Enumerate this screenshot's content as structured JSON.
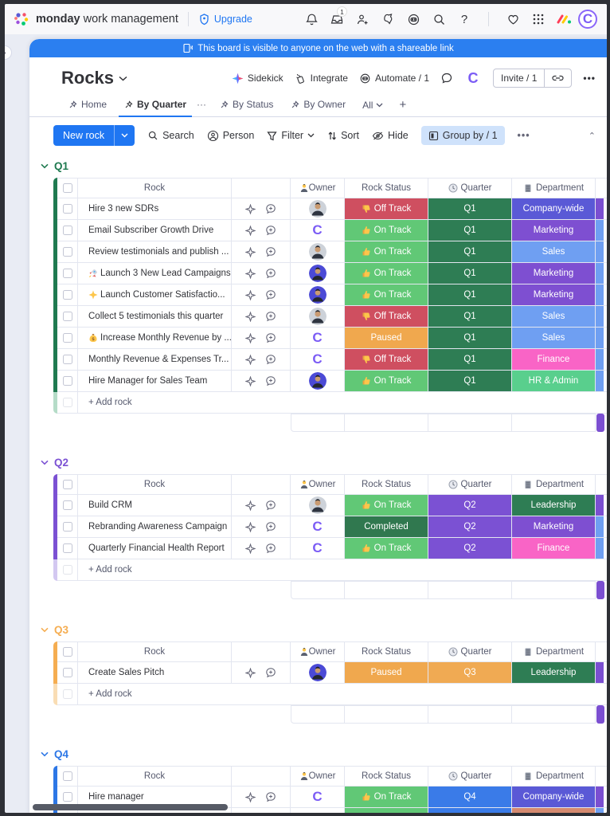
{
  "topbar": {
    "product_bold": "monday",
    "product_rest": "work management",
    "upgrade_label": "Upgrade",
    "inbox_badge": "1",
    "icons": [
      "notifications-bell-icon",
      "inbox-icon",
      "invite-members-icon",
      "updates-icon",
      "automations-robot-icon",
      "search-icon",
      "help-icon",
      "favorites-heart-icon",
      "apps-grid-icon",
      "monday-logo-icon",
      "account-avatar-c"
    ]
  },
  "banner": {
    "text": "This board is visible to anyone on the web with a shareable link",
    "icon": "shareable-link-doc-icon"
  },
  "board": {
    "title": "Rocks",
    "actions": {
      "sidekick": "Sidekick",
      "integrate": "Integrate",
      "automate": "Automate / 1",
      "invite": "Invite / 1"
    },
    "tabs": [
      {
        "label": "Home",
        "active": false
      },
      {
        "label": "By Quarter",
        "active": true
      },
      {
        "label": "By Status",
        "active": false
      },
      {
        "label": "By Owner",
        "active": false
      }
    ],
    "views_filter": "All",
    "add_view": "+"
  },
  "toolbar": {
    "new_item": "New rock",
    "search": "Search",
    "person": "Person",
    "filter": "Filter",
    "sort": "Sort",
    "hide": "Hide",
    "group_by": "Group by / 1",
    "more": "...",
    "collapse": "^"
  },
  "columns": {
    "rock": "Rock",
    "owner": "Owner",
    "status": "Rock Status",
    "quarter": "Quarter",
    "department": "Department"
  },
  "add_rock_label": "+ Add rock",
  "colors": {
    "accent_blue": "#1f76f2",
    "banner_blue": "#2b7ff0",
    "status": {
      "On Track": "#61c876",
      "Off Track": "#cf4f60",
      "Paused": "#f0a84e",
      "Completed": "#30784f"
    },
    "quarter": {
      "Q1": "#2e7d54",
      "Q2": "#7b51d3",
      "Q3": "#f0aa53",
      "Q4": "#3a7be8"
    },
    "department": {
      "Company-wide": "#5a59d6",
      "Marketing": "#7e4fd1",
      "Sales": "#6f9ff2",
      "Finance": "#f964c6",
      "HR & Admin": "#59cf8d",
      "Leadership": "#2e7d54"
    },
    "sliver": {
      "purple": "#7b4fd1",
      "blue": "#6f9ff2",
      "salmon": "#d58a70",
      "green": "#61c876"
    }
  },
  "groups": [
    {
      "name": "Q1",
      "color": "#1f7a50",
      "pale": "#b5dcc8",
      "summary": true,
      "rows": [
        {
          "name": "Hire 3 new SDRs",
          "name_icon": null,
          "avatar": "photo-avatar",
          "status": "Off Track",
          "status_icon": "thumbs-down",
          "quarter": "Q1",
          "department": "Company-wide",
          "sliver": "purple"
        },
        {
          "name": "Email Subscriber Growth Drive",
          "name_icon": null,
          "avatar": "c-logo-avatar",
          "status": "On Track",
          "status_icon": "thumbs-up",
          "quarter": "Q1",
          "department": "Marketing",
          "sliver": "blue"
        },
        {
          "name": "Review testimonials and publish ...",
          "name_icon": null,
          "avatar": "photo-avatar",
          "status": "On Track",
          "status_icon": "thumbs-up",
          "quarter": "Q1",
          "department": "Sales",
          "sliver": "blue"
        },
        {
          "name": "Launch 3 New Lead Campaigns",
          "name_icon": "rocket-icon",
          "avatar": "indigo-avatar",
          "status": "On Track",
          "status_icon": "thumbs-up",
          "quarter": "Q1",
          "department": "Marketing",
          "sliver": "blue"
        },
        {
          "name": "Launch Customer Satisfactio...",
          "name_icon": "star-icon",
          "avatar": "indigo-avatar",
          "status": "On Track",
          "status_icon": "thumbs-up",
          "quarter": "Q1",
          "department": "Marketing",
          "sliver": "blue"
        },
        {
          "name": "Collect 5 testimonials this quarter",
          "name_icon": null,
          "avatar": "photo-avatar",
          "status": "Off Track",
          "status_icon": "thumbs-down",
          "quarter": "Q1",
          "department": "Sales",
          "sliver": "blue"
        },
        {
          "name": "Increase Monthly Revenue by ...",
          "name_icon": "moneybag-icon",
          "avatar": "c-logo-avatar",
          "status": "Paused",
          "status_icon": null,
          "quarter": "Q1",
          "department": "Sales",
          "sliver": "blue"
        },
        {
          "name": "Monthly Revenue & Expenses Tr...",
          "name_icon": null,
          "avatar": "c-logo-avatar",
          "status": "Off Track",
          "status_icon": "thumbs-down",
          "quarter": "Q1",
          "department": "Finance",
          "sliver": "blue"
        },
        {
          "name": "Hire Manager for Sales Team",
          "name_icon": null,
          "avatar": "indigo-avatar",
          "status": "On Track",
          "status_icon": "thumbs-up",
          "quarter": "Q1",
          "department": "HR & Admin",
          "sliver": "blue"
        }
      ]
    },
    {
      "name": "Q2",
      "color": "#7b51d3",
      "pale": "#d3c8f1",
      "summary": true,
      "rows": [
        {
          "name": "Build CRM",
          "name_icon": null,
          "avatar": "photo-avatar",
          "status": "On Track",
          "status_icon": "thumbs-up",
          "quarter": "Q2",
          "department": "Leadership",
          "sliver": "purple"
        },
        {
          "name": "Rebranding Awareness Campaign",
          "name_icon": null,
          "avatar": "c-logo-avatar",
          "status": "Completed",
          "status_icon": null,
          "quarter": "Q2",
          "department": "Marketing",
          "sliver": "blue"
        },
        {
          "name": "Quarterly Financial Health Report",
          "name_icon": null,
          "avatar": "c-logo-avatar",
          "status": "On Track",
          "status_icon": "thumbs-up",
          "quarter": "Q2",
          "department": "Finance",
          "sliver": "blue"
        }
      ]
    },
    {
      "name": "Q3",
      "color": "#f5ad51",
      "pale": "#f9ddb4",
      "summary": true,
      "rows": [
        {
          "name": "Create Sales Pitch",
          "name_icon": null,
          "avatar": "indigo-avatar",
          "status": "Paused",
          "status_icon": null,
          "quarter": "Q3",
          "department": "Leadership",
          "sliver": "purple"
        }
      ]
    },
    {
      "name": "Q4",
      "color": "#2d77e6",
      "pale": "#bcd4f7",
      "summary": false,
      "rows": [
        {
          "name": "Hire manager",
          "name_icon": null,
          "avatar": "c-logo-avatar",
          "status": "On Track",
          "status_icon": "thumbs-up",
          "quarter": "Q4",
          "department": "Company-wide",
          "sliver": "purple"
        }
      ],
      "partial_row": {
        "status_color": "green",
        "quarter_color": "blue",
        "department_color": "salmon",
        "sliver": "blue"
      }
    }
  ]
}
